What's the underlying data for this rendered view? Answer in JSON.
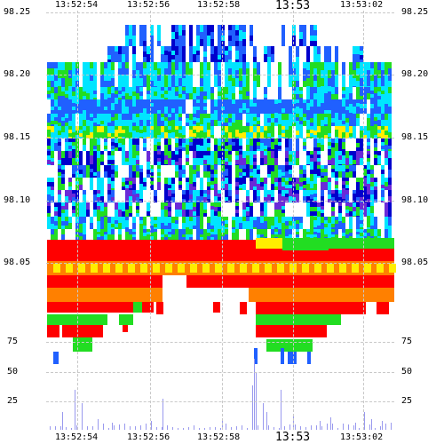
{
  "chart_data": {
    "type": "heatmap",
    "title": "",
    "xlabel": "",
    "ylabel": "",
    "x_ticks": [
      {
        "t": "13:52:54",
        "big": false
      },
      {
        "t": "13:52:56",
        "big": false
      },
      {
        "t": "13:52:58",
        "big": false
      },
      {
        "t": "13:53",
        "big": true
      },
      {
        "t": "13:53:02",
        "big": false
      }
    ],
    "price_ticks": [
      "98.25",
      "98.20",
      "98.15",
      "98.10",
      "98.05"
    ],
    "volume_ticks": [
      "75",
      "50",
      "25"
    ],
    "price_range": [
      98.0,
      98.25
    ],
    "volume_range": [
      0,
      100
    ],
    "grid": true,
    "colors": {
      "red": "#ff0000",
      "orange": "#ff8000",
      "yellow": "#ffee00",
      "green": "#22dd22",
      "cyan": "#00e5ff",
      "blue": "#2060ff",
      "navy": "#0000cc",
      "purple": "#6a2ad8",
      "volume_bar": "#9999ee"
    }
  }
}
